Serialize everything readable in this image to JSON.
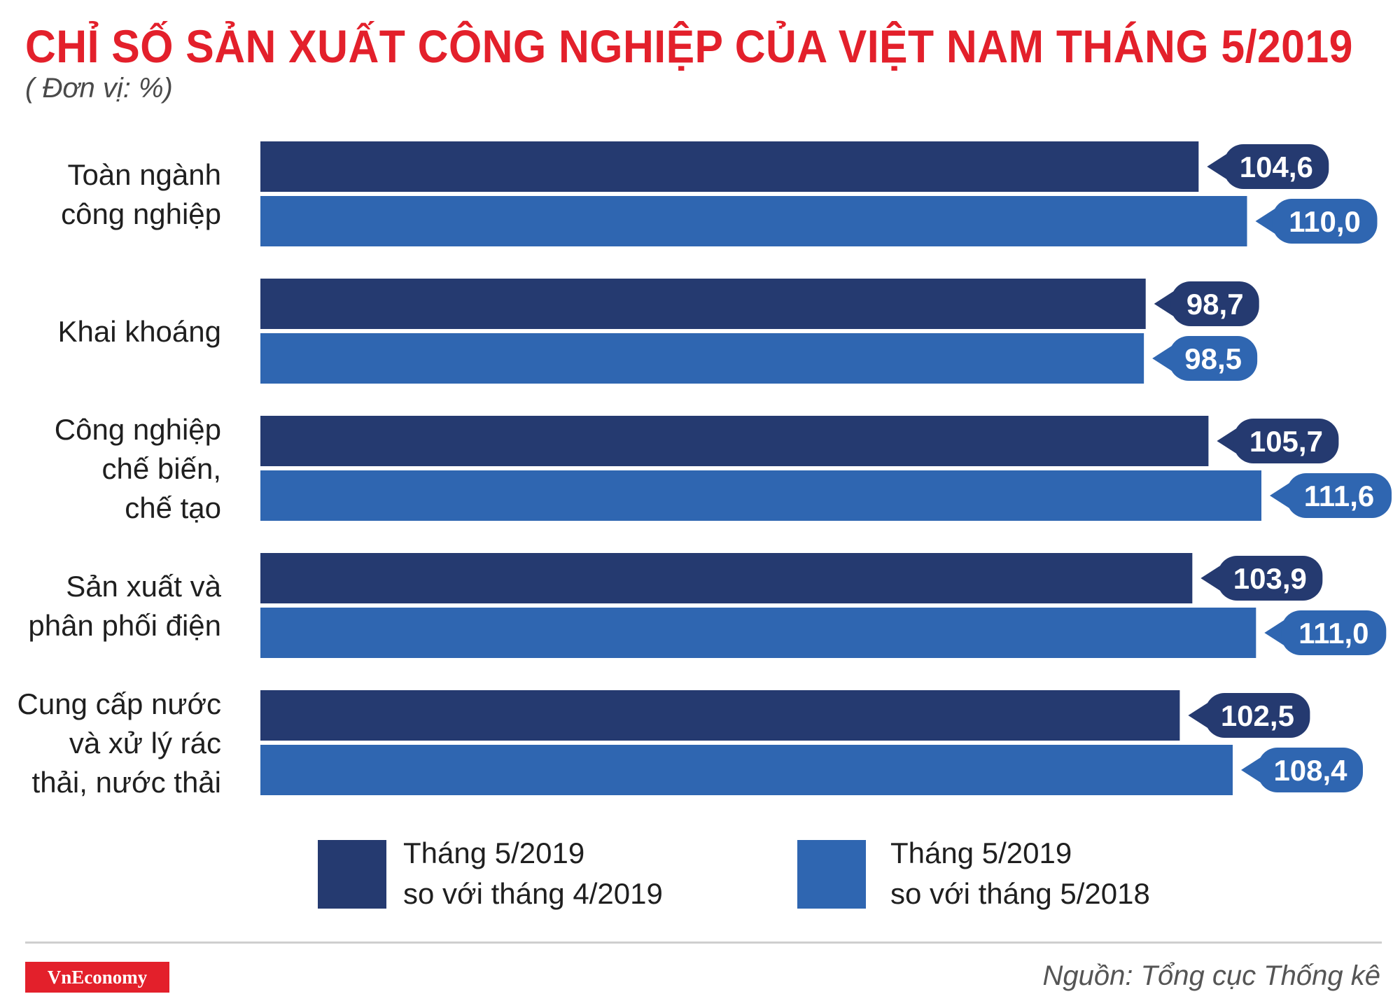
{
  "header": {
    "title": "CHỈ SỐ SẢN XUẤT CÔNG NGHIỆP CỦA VIỆT NAM THÁNG 5/2019",
    "unit": "( Đơn vị: %)"
  },
  "colors": {
    "title": "#e3202b",
    "series_1": "#253a70",
    "series_2": "#2f66b1",
    "brand": "#e3202b"
  },
  "chart_data": {
    "type": "bar",
    "orientation": "horizontal",
    "categories": [
      [
        "Toàn ngành",
        "công nghiệp"
      ],
      [
        "Khai khoáng"
      ],
      [
        "Công nghiệp",
        "chế biến,",
        "chế tạo"
      ],
      [
        "Sản xuất và",
        "phân phối điện"
      ],
      [
        "Cung cấp nước",
        "và xử lý rác",
        "thải, nước thải"
      ]
    ],
    "series": [
      {
        "name": "Tháng 5/2019 so với tháng 4/2019",
        "values": [
          104.6,
          98.7,
          105.7,
          103.9,
          102.5
        ],
        "labels": [
          "104,6",
          "98,7",
          "105,7",
          "103,9",
          "102,5"
        ]
      },
      {
        "name": "Tháng 5/2019 so với tháng 5/2018",
        "values": [
          110.0,
          98.5,
          111.6,
          111.0,
          108.4
        ],
        "labels": [
          "110,0",
          "98,5",
          "111,6",
          "111,0",
          "108,4"
        ]
      }
    ],
    "xlim": [
      0,
      111.6
    ],
    "grid": false,
    "legend_position": "bottom"
  },
  "legend": [
    {
      "line1": "Tháng 5/2019",
      "line2": "so với tháng 4/2019"
    },
    {
      "line1": "Tháng 5/2019",
      "line2": "so với tháng 5/2018"
    }
  ],
  "footer": {
    "brand": "VnEconomy",
    "source": "Nguồn: Tổng cục Thống kê"
  }
}
